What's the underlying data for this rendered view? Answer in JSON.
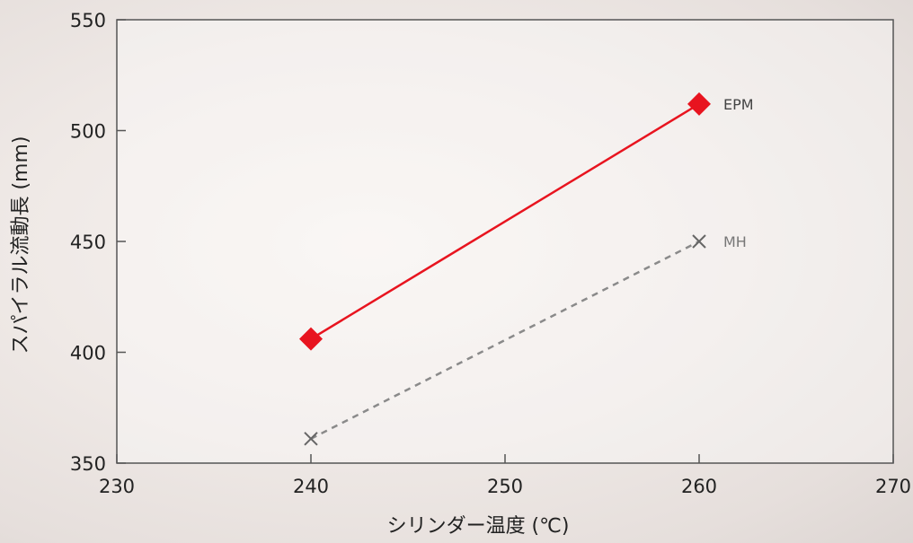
{
  "chart_data": {
    "type": "line",
    "xlabel": "シリンダー温度 (℃)",
    "ylabel": "スパイラル流動長 (mm)",
    "xlim": [
      230,
      270
    ],
    "ylim": [
      350,
      550
    ],
    "xticks": [
      230,
      240,
      250,
      260,
      270
    ],
    "yticks": [
      350,
      400,
      450,
      500,
      550
    ],
    "grid": false,
    "series": [
      {
        "name": "EPM",
        "x": [
          240,
          260
        ],
        "y": [
          406,
          512
        ],
        "color": "#e8141f",
        "marker": "diamond",
        "line_style": "solid"
      },
      {
        "name": "MH",
        "x": [
          240,
          260
        ],
        "y": [
          361,
          450
        ],
        "color": "#8a8a8a",
        "marker": "x",
        "line_style": "dashed"
      }
    ]
  },
  "colors": {
    "axis": "#555555",
    "text": "#222222",
    "plot_background": "rgba(255,255,255,0.35)"
  }
}
